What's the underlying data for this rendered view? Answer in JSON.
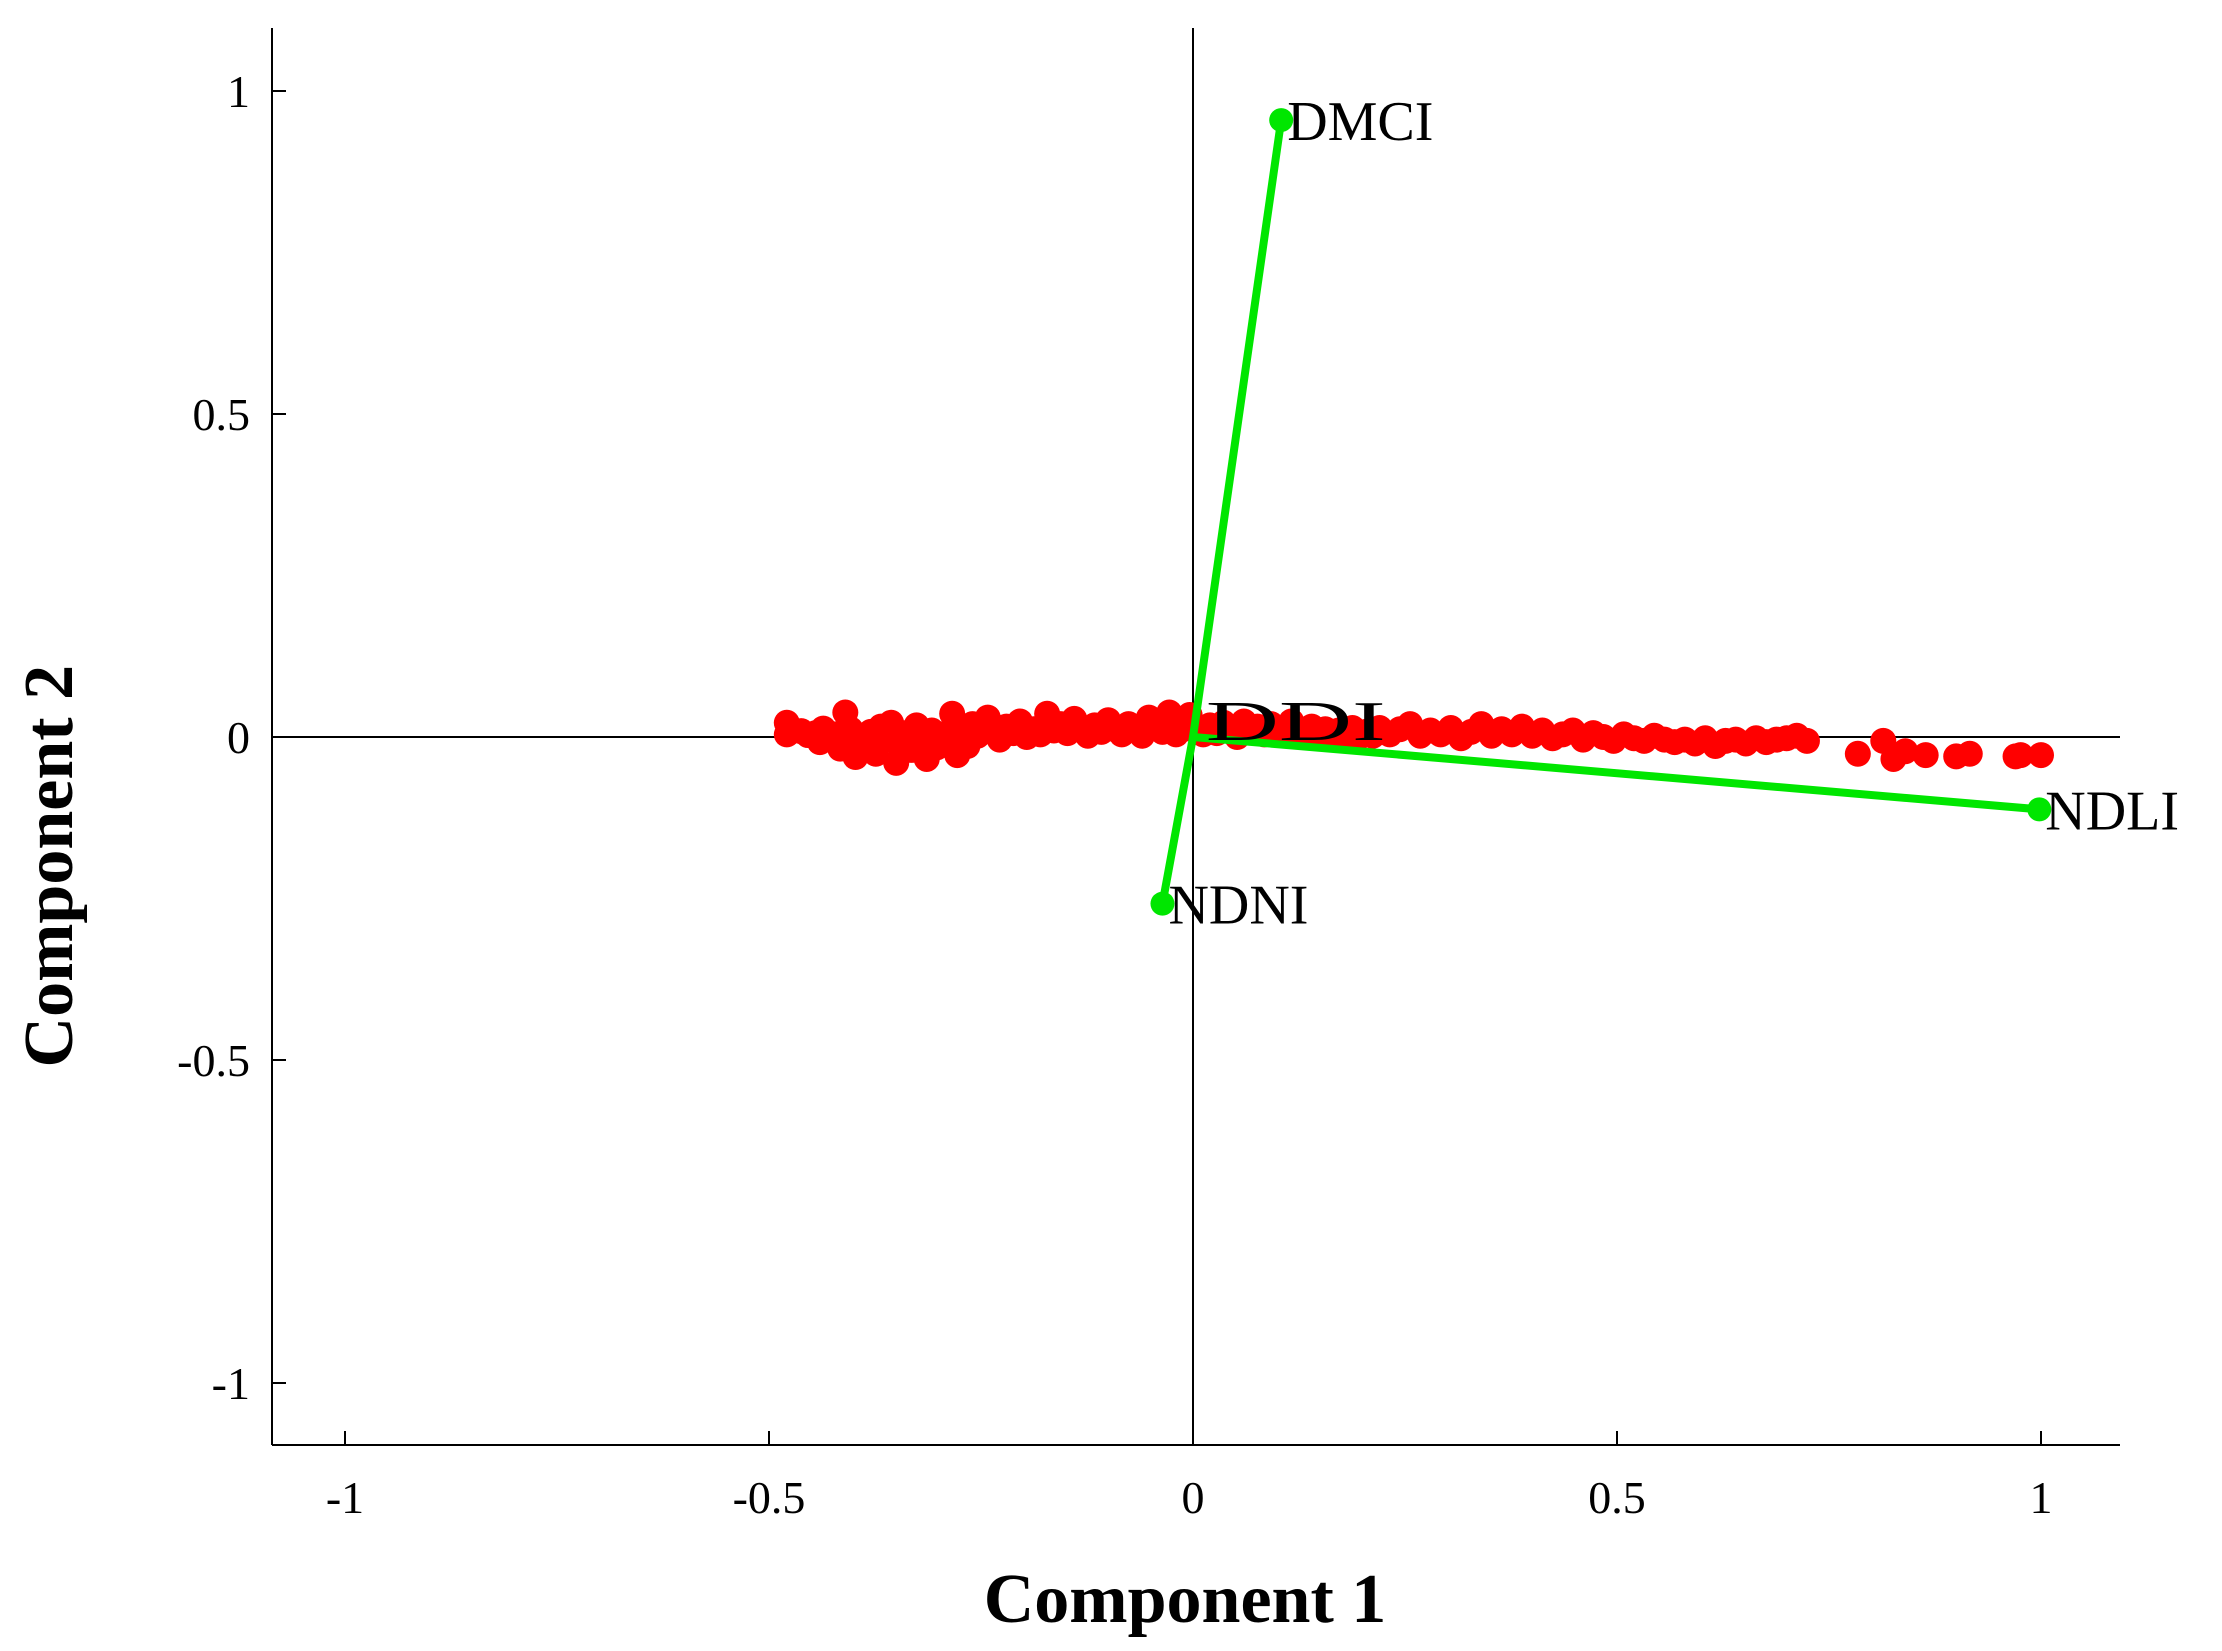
{
  "chart_data": {
    "type": "scatter",
    "title": "",
    "xlabel": "Component 1",
    "ylabel": "Component 2",
    "xlim": [
      -1.09,
      1.09
    ],
    "ylim": [
      -1.09,
      1.09
    ],
    "xticks": [
      -1,
      -0.5,
      0,
      0.5,
      1
    ],
    "yticks": [
      -1,
      -0.5,
      0,
      0.5,
      1
    ],
    "xtick_labels": [
      "-1",
      "-0.5",
      "0",
      "0.5",
      "1"
    ],
    "ytick_labels": [
      "-1",
      "-0.5",
      "0",
      "0.5",
      "1"
    ],
    "grid": false,
    "zero_lines": true,
    "colors": {
      "observations": "#ff0000",
      "vectors": "#00e600",
      "axes": "#000000"
    },
    "vectors": [
      {
        "name": "DMCI",
        "x": 0.104,
        "y": 0.955
      },
      {
        "name": "NDLI",
        "x": 0.998,
        "y": -0.112
      },
      {
        "name": "NDNI",
        "x": -0.036,
        "y": -0.258
      }
    ],
    "clustered_vector_label": "DDI",
    "points": [
      [
        -0.479,
        0.022
      ],
      [
        -0.479,
        0.004
      ],
      [
        -0.462,
        0.009
      ],
      [
        -0.454,
        0.003
      ],
      [
        -0.445,
        0.006
      ],
      [
        -0.44,
        -0.008
      ],
      [
        -0.436,
        0.013
      ],
      [
        -0.428,
        -0.002
      ],
      [
        -0.422,
        0.004
      ],
      [
        -0.416,
        -0.018
      ],
      [
        -0.41,
        0.038
      ],
      [
        -0.404,
        0.012
      ],
      [
        -0.398,
        -0.031
      ],
      [
        -0.392,
        0.002
      ],
      [
        -0.386,
        -0.012
      ],
      [
        -0.38,
        0.008
      ],
      [
        -0.374,
        -0.026
      ],
      [
        -0.368,
        0.016
      ],
      [
        -0.362,
        -0.004
      ],
      [
        -0.356,
        0.022
      ],
      [
        -0.35,
        -0.04
      ],
      [
        -0.344,
        -0.01
      ],
      [
        -0.338,
        0.006
      ],
      [
        -0.332,
        -0.02
      ],
      [
        -0.326,
        0.018
      ],
      [
        -0.32,
        -0.002
      ],
      [
        -0.314,
        -0.034
      ],
      [
        -0.308,
        0.01
      ],
      [
        -0.302,
        -0.016
      ],
      [
        -0.296,
        0.004
      ],
      [
        -0.29,
        -0.006
      ],
      [
        -0.284,
        0.036
      ],
      [
        -0.278,
        -0.028
      ],
      [
        -0.272,
        0.012
      ],
      [
        -0.266,
        -0.014
      ],
      [
        -0.26,
        0.02
      ],
      [
        -0.254,
        0.002
      ],
      [
        -0.248,
        0.014
      ],
      [
        -0.242,
        0.03
      ],
      [
        -0.236,
        0.008
      ],
      [
        -0.228,
        -0.004
      ],
      [
        -0.22,
        0.016
      ],
      [
        -0.212,
        0.006
      ],
      [
        -0.204,
        0.024
      ],
      [
        -0.196,
        0.0
      ],
      [
        -0.188,
        0.012
      ],
      [
        -0.18,
        0.004
      ],
      [
        -0.172,
        0.036
      ],
      [
        -0.164,
        0.01
      ],
      [
        -0.156,
        0.02
      ],
      [
        -0.148,
        0.006
      ],
      [
        -0.14,
        0.028
      ],
      [
        -0.132,
        0.014
      ],
      [
        -0.124,
        0.002
      ],
      [
        -0.116,
        0.018
      ],
      [
        -0.108,
        0.008
      ],
      [
        -0.1,
        0.026
      ],
      [
        -0.092,
        0.012
      ],
      [
        -0.084,
        0.004
      ],
      [
        -0.076,
        0.02
      ],
      [
        -0.068,
        0.01
      ],
      [
        -0.06,
        0.002
      ],
      [
        -0.052,
        0.03
      ],
      [
        -0.044,
        0.016
      ],
      [
        -0.036,
        0.008
      ],
      [
        -0.028,
        0.038
      ],
      [
        -0.02,
        0.004
      ],
      [
        -0.012,
        0.012
      ],
      [
        -0.004,
        0.034
      ],
      [
        0.004,
        0.01
      ],
      [
        0.012,
        0.004
      ],
      [
        0.02,
        0.018
      ],
      [
        0.028,
        0.006
      ],
      [
        0.036,
        0.022
      ],
      [
        0.044,
        0.012
      ],
      [
        0.052,
        0.0
      ],
      [
        0.06,
        0.024
      ],
      [
        0.068,
        0.008
      ],
      [
        0.076,
        0.016
      ],
      [
        0.084,
        0.004
      ],
      [
        0.092,
        0.02
      ],
      [
        0.1,
        0.012
      ],
      [
        0.108,
        0.006
      ],
      [
        0.116,
        0.024
      ],
      [
        0.124,
        0.01
      ],
      [
        0.132,
        0.0
      ],
      [
        0.14,
        0.016
      ],
      [
        0.148,
        0.006
      ],
      [
        0.156,
        0.012
      ],
      [
        0.164,
        0.002
      ],
      [
        0.172,
        0.01
      ],
      [
        0.18,
        0.004
      ],
      [
        0.188,
        0.014
      ],
      [
        0.196,
        0.0
      ],
      [
        0.204,
        0.008
      ],
      [
        0.212,
        0.002
      ],
      [
        0.22,
        0.014
      ],
      [
        0.232,
        0.004
      ],
      [
        0.244,
        0.012
      ],
      [
        0.256,
        0.02
      ],
      [
        0.268,
        0.002
      ],
      [
        0.28,
        0.01
      ],
      [
        0.292,
        0.004
      ],
      [
        0.304,
        0.014
      ],
      [
        0.316,
        -0.002
      ],
      [
        0.328,
        0.008
      ],
      [
        0.34,
        0.02
      ],
      [
        0.352,
        0.002
      ],
      [
        0.364,
        0.012
      ],
      [
        0.376,
        0.004
      ],
      [
        0.388,
        0.016
      ],
      [
        0.4,
        0.002
      ],
      [
        0.412,
        0.01
      ],
      [
        0.424,
        -0.002
      ],
      [
        0.436,
        0.004
      ],
      [
        0.448,
        0.01
      ],
      [
        0.46,
        -0.004
      ],
      [
        0.472,
        0.006
      ],
      [
        0.484,
        0.0
      ],
      [
        0.496,
        -0.006
      ],
      [
        0.508,
        0.004
      ],
      [
        0.52,
        -0.002
      ],
      [
        0.532,
        -0.006
      ],
      [
        0.544,
        0.002
      ],
      [
        0.556,
        -0.004
      ],
      [
        0.568,
        -0.008
      ],
      [
        0.58,
        -0.004
      ],
      [
        0.592,
        -0.01
      ],
      [
        0.604,
        -0.002
      ],
      [
        0.616,
        -0.014
      ],
      [
        0.628,
        -0.006
      ],
      [
        0.64,
        -0.004
      ],
      [
        0.652,
        -0.01
      ],
      [
        0.664,
        -0.002
      ],
      [
        0.676,
        -0.008
      ],
      [
        0.688,
        -0.004
      ],
      [
        0.7,
        -0.002
      ],
      [
        0.712,
        0.002
      ],
      [
        0.724,
        -0.006
      ],
      [
        0.784,
        -0.026
      ],
      [
        0.814,
        -0.006
      ],
      [
        0.826,
        -0.034
      ],
      [
        0.84,
        -0.022
      ],
      [
        0.864,
        -0.028
      ],
      [
        0.9,
        -0.03
      ],
      [
        0.916,
        -0.026
      ],
      [
        0.976,
        -0.028
      ],
      [
        1.0,
        -0.028
      ],
      [
        0.97,
        -0.03
      ]
    ]
  }
}
